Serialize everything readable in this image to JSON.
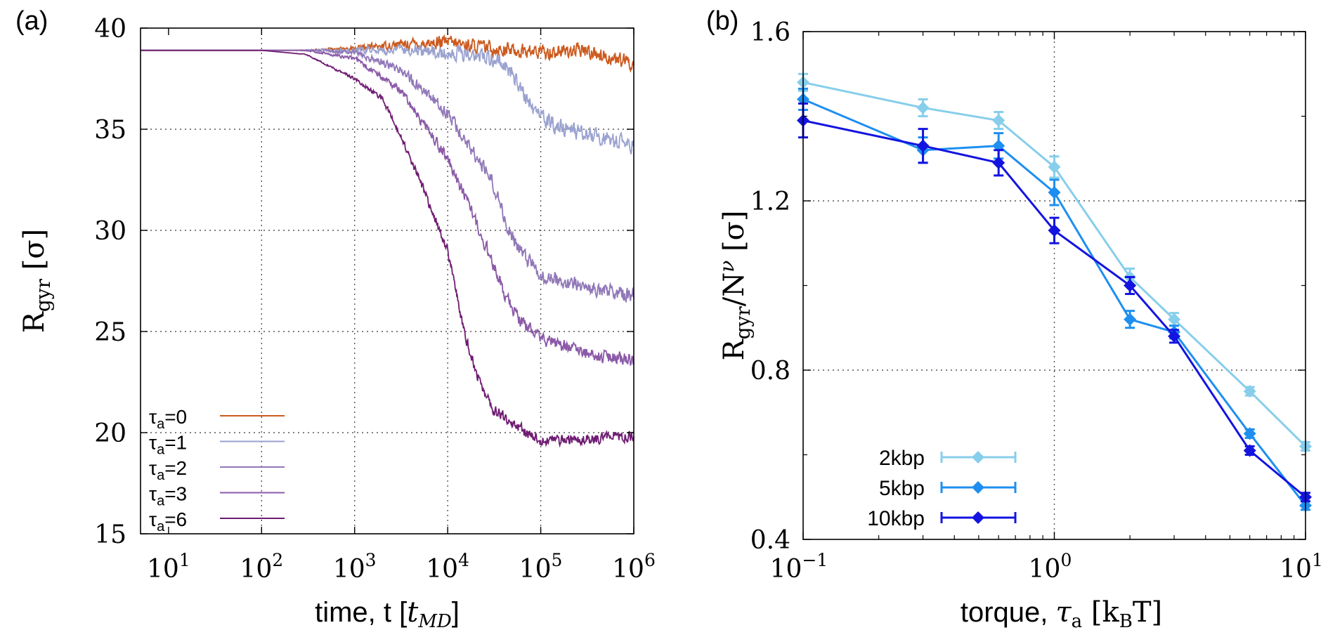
{
  "figure": {
    "panel_a_label": "(a)",
    "panel_b_label": "(b)"
  },
  "chart_data": [
    {
      "type": "line",
      "panel": "(a)",
      "title": "",
      "xlabel": "time, t [t_MD]",
      "xlabel_main": "time, t [",
      "xlabel_sym": "t",
      "xlabel_sub": "MD",
      "xlabel_end": "]",
      "ylabel": "Rgyr [σ]",
      "ylabel_main": "R",
      "ylabel_sub": "gyr",
      "ylabel_end": " [σ]",
      "xscale": "log",
      "xlim": [
        5,
        1000000
      ],
      "ylim": [
        15,
        40
      ],
      "yticks": [
        15,
        20,
        25,
        30,
        35,
        40
      ],
      "xticks": [
        {
          "value": 10,
          "base": "10",
          "exp": "1"
        },
        {
          "value": 100,
          "base": "10",
          "exp": "2"
        },
        {
          "value": 1000,
          "base": "10",
          "exp": "3"
        },
        {
          "value": 10000,
          "base": "10",
          "exp": "4"
        },
        {
          "value": 100000,
          "base": "10",
          "exp": "5"
        },
        {
          "value": 1000000,
          "base": "10",
          "exp": "6"
        }
      ],
      "grid": true,
      "legend_position": "bottom-left",
      "series": [
        {
          "label_main": "τ",
          "label_sub": "a",
          "label_val": "=0",
          "color": "#cc5a1e",
          "points": [
            [
              5,
              38.9
            ],
            [
              100,
              38.9
            ],
            [
              300,
              38.9
            ],
            [
              1000,
              39.0
            ],
            [
              3000,
              39.2
            ],
            [
              10000,
              39.3
            ],
            [
              30000,
              39.0
            ],
            [
              100000,
              38.8
            ],
            [
              300000,
              38.9
            ],
            [
              1000000,
              38.2
            ]
          ],
          "noise": 0.5
        },
        {
          "label_main": "τ",
          "label_sub": "a",
          "label_val": "=1",
          "color": "#9aa2cf",
          "points": [
            [
              5,
              38.9
            ],
            [
              100,
              38.9
            ],
            [
              1000,
              38.9
            ],
            [
              5000,
              38.9
            ],
            [
              20000,
              38.7
            ],
            [
              40000,
              38.3
            ],
            [
              70000,
              36.5
            ],
            [
              100000,
              35.5
            ],
            [
              200000,
              35.0
            ],
            [
              1000000,
              34.2
            ]
          ],
          "noise": 0.55
        },
        {
          "label_main": "τ",
          "label_sub": "a",
          "label_val": "=2",
          "color": "#9178b8",
          "points": [
            [
              5,
              38.9
            ],
            [
              300,
              38.9
            ],
            [
              1000,
              38.8
            ],
            [
              3000,
              38.0
            ],
            [
              10000,
              35.8
            ],
            [
              30000,
              32.5
            ],
            [
              50000,
              29.5
            ],
            [
              100000,
              27.7
            ],
            [
              300000,
              27.2
            ],
            [
              1000000,
              26.8
            ]
          ],
          "noise": 0.5
        },
        {
          "label_main": "τ",
          "label_sub": "a",
          "label_val": "=3",
          "color": "#8b5aa8",
          "points": [
            [
              5,
              38.9
            ],
            [
              300,
              38.9
            ],
            [
              1000,
              38.5
            ],
            [
              3000,
              37.0
            ],
            [
              10000,
              33.5
            ],
            [
              20000,
              30.5
            ],
            [
              40000,
              27.0
            ],
            [
              60000,
              25.5
            ],
            [
              100000,
              24.6
            ],
            [
              300000,
              23.9
            ],
            [
              1000000,
              23.6
            ]
          ],
          "noise": 0.45
        },
        {
          "label_main": "τ",
          "label_sub": "a",
          "label_val": "=6",
          "color": "#6f1c72",
          "points": [
            [
              5,
              38.9
            ],
            [
              100,
              38.9
            ],
            [
              300,
              38.7
            ],
            [
              1000,
              37.5
            ],
            [
              2000,
              36.5
            ],
            [
              3000,
              34.8
            ],
            [
              5000,
              32.5
            ],
            [
              10000,
              29.0
            ],
            [
              15000,
              25.0
            ],
            [
              20000,
              23.0
            ],
            [
              30000,
              21.2
            ],
            [
              60000,
              20.2
            ],
            [
              100000,
              19.6
            ],
            [
              1000000,
              19.8
            ]
          ],
          "noise": 0.35
        }
      ]
    },
    {
      "type": "line",
      "panel": "(b)",
      "title": "",
      "xlabel": "torque, τa [kBT]",
      "xlabel_main": "torque, ",
      "xlabel_sym": "τ",
      "xlabel_sub": "a",
      "xlabel_mid": " [k",
      "xlabel_sub2": "B",
      "xlabel_end": "T]",
      "ylabel": "Rgyr/N^ν [σ]",
      "ylabel_main": "R",
      "ylabel_sub": "gyr",
      "ylabel_mid": "/N",
      "ylabel_sup": "ν",
      "ylabel_end": " [σ]",
      "xscale": "log",
      "xlim": [
        0.1,
        10
      ],
      "ylim": [
        0.4,
        1.6
      ],
      "yticks": [
        0.4,
        0.8,
        1.2,
        1.6
      ],
      "ytick_labels": [
        "0.4",
        "0.8",
        "1.2",
        "1.6"
      ],
      "xticks": [
        {
          "value": 0.1,
          "base": "10",
          "exp": "−1"
        },
        {
          "value": 1,
          "base": "10",
          "exp": "0"
        },
        {
          "value": 10,
          "base": "10",
          "exp": "1"
        }
      ],
      "grid": true,
      "legend_position": "bottom-left",
      "series": [
        {
          "name": "2kbp",
          "color": "#87ceeb",
          "x": [
            0.1,
            0.3,
            0.6,
            1,
            2,
            3,
            6,
            10
          ],
          "y": [
            1.48,
            1.42,
            1.39,
            1.28,
            1.02,
            0.92,
            0.75,
            0.62
          ],
          "err": [
            0.02,
            0.02,
            0.02,
            0.025,
            0.02,
            0.015,
            0.01,
            0.01
          ]
        },
        {
          "name": "5kbp",
          "color": "#1e8ff0",
          "x": [
            0.1,
            0.3,
            0.6,
            1,
            2,
            3,
            6,
            10
          ],
          "y": [
            1.44,
            1.32,
            1.33,
            1.22,
            0.92,
            0.89,
            0.65,
            0.48
          ],
          "err": [
            0.025,
            0.03,
            0.03,
            0.03,
            0.02,
            0.015,
            0.01,
            0.01
          ]
        },
        {
          "name": "10kbp",
          "color": "#1414e0",
          "x": [
            0.1,
            0.3,
            0.6,
            1,
            2,
            3,
            6,
            10
          ],
          "y": [
            1.39,
            1.33,
            1.29,
            1.13,
            1.0,
            0.88,
            0.61,
            0.5
          ],
          "err": [
            0.04,
            0.04,
            0.03,
            0.03,
            0.02,
            0.015,
            0.01,
            0.01
          ]
        }
      ]
    }
  ]
}
